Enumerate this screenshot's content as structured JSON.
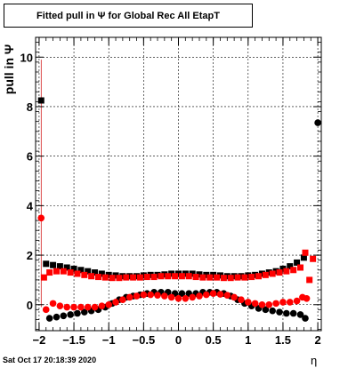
{
  "chart_data": {
    "type": "scatter",
    "title": "Fitted pull in  Ψ  for Global Rec All EtapT",
    "xlabel": "η",
    "ylabel": "pull in Ψ",
    "xlim": [
      -2.05,
      2.05
    ],
    "ylim": [
      -1.05,
      10.8
    ],
    "xticks": [
      "−2",
      "−1.5",
      "−1",
      "−0.5",
      "0",
      "0.5",
      "1",
      "1.5",
      "2"
    ],
    "xtick_values": [
      -2,
      -1.5,
      -1,
      -0.5,
      0,
      0.5,
      1,
      1.5,
      2
    ],
    "yticks": [
      "0",
      "2",
      "4",
      "6",
      "8",
      "10"
    ],
    "ytick_values": [
      0,
      2,
      4,
      6,
      8,
      10
    ],
    "grid": true,
    "series": [
      {
        "color": "#000000",
        "marker": "square",
        "points": [
          [
            -1.97,
            8.25
          ],
          [
            -1.9,
            1.65
          ],
          [
            -1.8,
            1.6
          ],
          [
            -1.7,
            1.55
          ],
          [
            -1.6,
            1.5
          ],
          [
            -1.5,
            1.45
          ],
          [
            -1.4,
            1.4
          ],
          [
            -1.3,
            1.35
          ],
          [
            -1.2,
            1.3
          ],
          [
            -1.1,
            1.25
          ],
          [
            -1.0,
            1.2
          ],
          [
            -0.9,
            1.18
          ],
          [
            -0.8,
            1.15
          ],
          [
            -0.7,
            1.15
          ],
          [
            -0.6,
            1.15
          ],
          [
            -0.5,
            1.18
          ],
          [
            -0.4,
            1.2
          ],
          [
            -0.3,
            1.2
          ],
          [
            -0.2,
            1.22
          ],
          [
            -0.1,
            1.25
          ],
          [
            0.0,
            1.25
          ],
          [
            0.1,
            1.25
          ],
          [
            0.2,
            1.25
          ],
          [
            0.3,
            1.22
          ],
          [
            0.4,
            1.2
          ],
          [
            0.5,
            1.2
          ],
          [
            0.6,
            1.18
          ],
          [
            0.7,
            1.15
          ],
          [
            0.8,
            1.15
          ],
          [
            0.9,
            1.15
          ],
          [
            1.0,
            1.18
          ],
          [
            1.1,
            1.2
          ],
          [
            1.2,
            1.25
          ],
          [
            1.3,
            1.3
          ],
          [
            1.4,
            1.35
          ],
          [
            1.5,
            1.45
          ],
          [
            1.6,
            1.55
          ],
          [
            1.7,
            1.7
          ],
          [
            1.8,
            1.9
          ]
        ]
      },
      {
        "color": "#000000",
        "marker": "circle",
        "points": [
          [
            2.0,
            7.35
          ],
          [
            -1.85,
            -0.55
          ],
          [
            -1.75,
            -0.5
          ],
          [
            -1.65,
            -0.45
          ],
          [
            -1.55,
            -0.4
          ],
          [
            -1.45,
            -0.35
          ],
          [
            -1.35,
            -0.3
          ],
          [
            -1.25,
            -0.25
          ],
          [
            -1.15,
            -0.2
          ],
          [
            -1.05,
            -0.1
          ],
          [
            -0.95,
            0.05
          ],
          [
            -0.85,
            0.2
          ],
          [
            -0.75,
            0.3
          ],
          [
            -0.65,
            0.35
          ],
          [
            -0.55,
            0.4
          ],
          [
            -0.45,
            0.45
          ],
          [
            -0.35,
            0.5
          ],
          [
            -0.25,
            0.5
          ],
          [
            -0.15,
            0.5
          ],
          [
            -0.05,
            0.45
          ],
          [
            0.05,
            0.45
          ],
          [
            0.15,
            0.45
          ],
          [
            0.25,
            0.45
          ],
          [
            0.35,
            0.5
          ],
          [
            0.45,
            0.5
          ],
          [
            0.55,
            0.5
          ],
          [
            0.65,
            0.45
          ],
          [
            0.75,
            0.35
          ],
          [
            0.85,
            0.2
          ],
          [
            0.95,
            0.05
          ],
          [
            1.05,
            -0.05
          ],
          [
            1.15,
            -0.15
          ],
          [
            1.25,
            -0.2
          ],
          [
            1.35,
            -0.25
          ],
          [
            1.45,
            -0.3
          ],
          [
            1.55,
            -0.35
          ],
          [
            1.65,
            -0.35
          ],
          [
            1.75,
            -0.4
          ],
          [
            1.82,
            -0.55
          ]
        ]
      },
      {
        "color": "#ff0000",
        "marker": "square",
        "points": [
          [
            -1.93,
            1.1
          ],
          [
            -1.85,
            1.3
          ],
          [
            -1.75,
            1.35
          ],
          [
            -1.65,
            1.35
          ],
          [
            -1.55,
            1.3
          ],
          [
            -1.45,
            1.25
          ],
          [
            -1.35,
            1.2
          ],
          [
            -1.25,
            1.15
          ],
          [
            -1.15,
            1.12
          ],
          [
            -1.05,
            1.1
          ],
          [
            -0.95,
            1.08
          ],
          [
            -0.85,
            1.08
          ],
          [
            -0.75,
            1.1
          ],
          [
            -0.65,
            1.1
          ],
          [
            -0.55,
            1.1
          ],
          [
            -0.45,
            1.12
          ],
          [
            -0.35,
            1.12
          ],
          [
            -0.25,
            1.15
          ],
          [
            -0.15,
            1.15
          ],
          [
            -0.05,
            1.15
          ],
          [
            0.05,
            1.15
          ],
          [
            0.15,
            1.15
          ],
          [
            0.25,
            1.12
          ],
          [
            0.35,
            1.1
          ],
          [
            0.45,
            1.1
          ],
          [
            0.55,
            1.1
          ],
          [
            0.65,
            1.08
          ],
          [
            0.75,
            1.08
          ],
          [
            0.85,
            1.1
          ],
          [
            0.95,
            1.1
          ],
          [
            1.05,
            1.12
          ],
          [
            1.15,
            1.15
          ],
          [
            1.25,
            1.2
          ],
          [
            1.35,
            1.25
          ],
          [
            1.45,
            1.3
          ],
          [
            1.55,
            1.35
          ],
          [
            1.65,
            1.4
          ],
          [
            1.75,
            1.5
          ],
          [
            1.82,
            2.1
          ],
          [
            1.88,
            1.0
          ],
          [
            1.93,
            1.85
          ]
        ]
      },
      {
        "color": "#ff0000",
        "marker": "circle",
        "points": [
          [
            -1.97,
            3.5
          ],
          [
            -1.9,
            -0.2
          ],
          [
            -1.8,
            0.05
          ],
          [
            -1.7,
            -0.05
          ],
          [
            -1.6,
            -0.1
          ],
          [
            -1.5,
            -0.1
          ],
          [
            -1.4,
            -0.1
          ],
          [
            -1.3,
            -0.1
          ],
          [
            -1.2,
            -0.1
          ],
          [
            -1.1,
            -0.05
          ],
          [
            -1.0,
            0.0
          ],
          [
            -0.9,
            0.1
          ],
          [
            -0.8,
            0.2
          ],
          [
            -0.7,
            0.3
          ],
          [
            -0.6,
            0.35
          ],
          [
            -0.5,
            0.4
          ],
          [
            -0.4,
            0.4
          ],
          [
            -0.3,
            0.38
          ],
          [
            -0.2,
            0.35
          ],
          [
            -0.1,
            0.3
          ],
          [
            0.0,
            0.25
          ],
          [
            0.1,
            0.25
          ],
          [
            0.2,
            0.3
          ],
          [
            0.3,
            0.35
          ],
          [
            0.4,
            0.4
          ],
          [
            0.5,
            0.45
          ],
          [
            0.6,
            0.42
          ],
          [
            0.7,
            0.38
          ],
          [
            0.8,
            0.3
          ],
          [
            0.9,
            0.2
          ],
          [
            1.0,
            0.1
          ],
          [
            1.1,
            0.05
          ],
          [
            1.2,
            0.0
          ],
          [
            1.3,
            0.0
          ],
          [
            1.4,
            0.05
          ],
          [
            1.5,
            0.1
          ],
          [
            1.6,
            0.1
          ],
          [
            1.7,
            0.15
          ],
          [
            1.78,
            0.3
          ],
          [
            1.84,
            0.25
          ]
        ]
      }
    ]
  },
  "footer": {
    "datestamp": "Sat Oct 17 20:18:39 2020"
  }
}
